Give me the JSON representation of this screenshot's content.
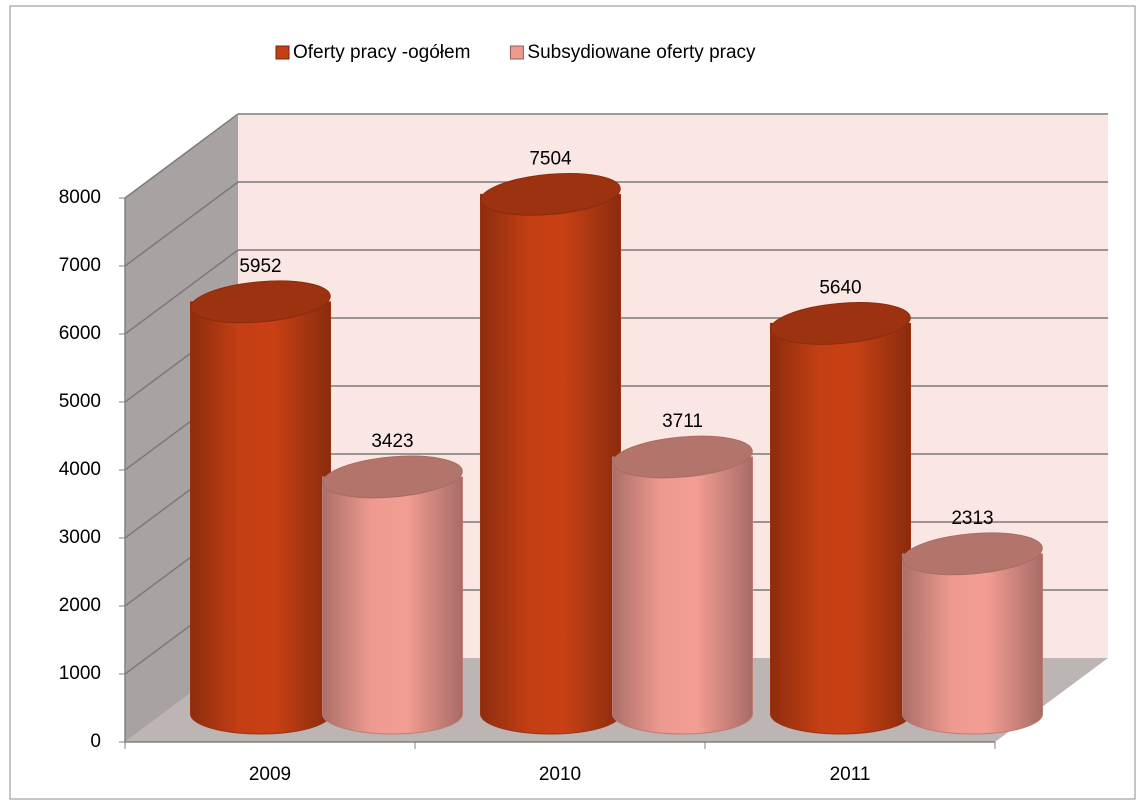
{
  "chart_data": {
    "type": "bar3d",
    "categories": [
      "2009",
      "2010",
      "2011"
    ],
    "series": [
      {
        "name": "Oferty pracy -ogółem",
        "color": "#c43f14",
        "values": [
          5952,
          7504,
          5640
        ]
      },
      {
        "name": "Subsydiowane oferty pracy",
        "color": "#ee9a90",
        "values": [
          3423,
          3711,
          2313
        ]
      }
    ],
    "ylim": [
      0,
      8000
    ],
    "yticks": [
      0,
      1000,
      2000,
      3000,
      4000,
      5000,
      6000,
      7000,
      8000
    ],
    "grid": true
  }
}
